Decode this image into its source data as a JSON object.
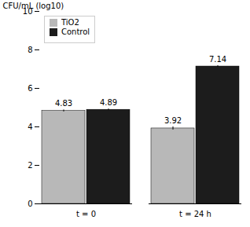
{
  "chart_data": {
    "type": "bar",
    "categories": [
      "t = 0",
      "t = 24 h"
    ],
    "series": [
      {
        "name": "TiO2",
        "color": "#b8b8b8",
        "values": [
          4.83,
          3.92
        ],
        "errors": [
          0.05,
          0.08
        ]
      },
      {
        "name": "Control",
        "color": "#1c1c1c",
        "values": [
          4.89,
          7.14
        ],
        "errors": [
          0.04,
          0.04
        ]
      }
    ],
    "ylabel": "CFU/mL (log10)",
    "ylim": [
      0,
      10
    ],
    "yticks": [
      0,
      2,
      4,
      6,
      8,
      10
    ],
    "legend": "upper left",
    "data_labels": true,
    "grid": false
  }
}
